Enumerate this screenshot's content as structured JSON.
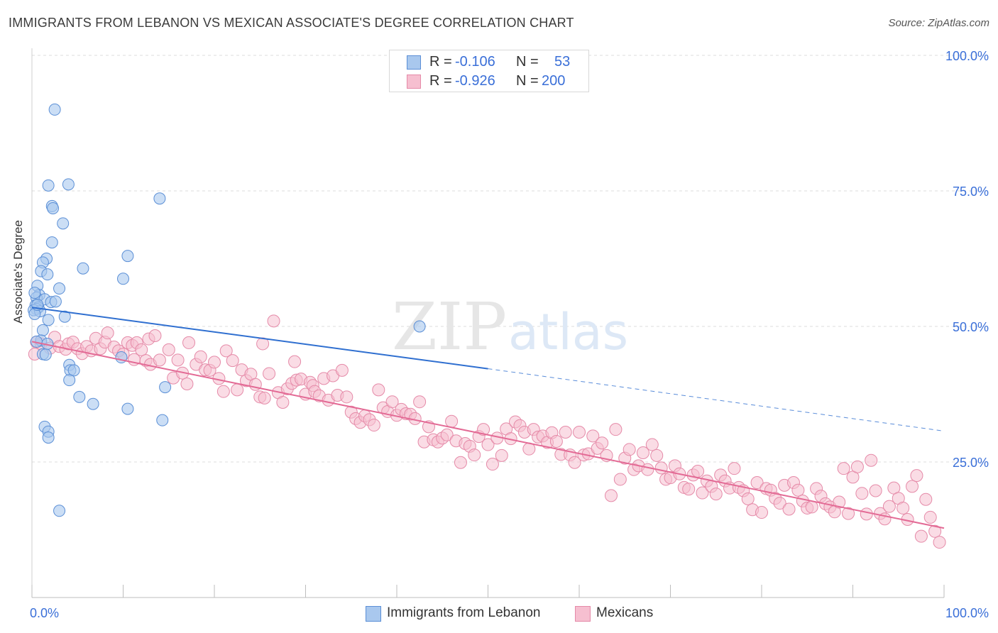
{
  "header": {
    "title": "IMMIGRANTS FROM LEBANON VS MEXICAN ASSOCIATE'S DEGREE CORRELATION CHART",
    "source": "Source: ZipAtlas.com"
  },
  "watermark": {
    "zip": "ZIP",
    "atlas": "atlas"
  },
  "legend_top": {
    "rows": [
      {
        "r_label": "R =",
        "r_value": "-0.106",
        "n_label": "N =",
        "n_value": "53"
      },
      {
        "r_label": "R =",
        "r_value": "-0.926",
        "n_label": "N =",
        "n_value": "200"
      }
    ]
  },
  "legend_bottom": {
    "items": [
      {
        "label": "Immigrants from Lebanon"
      },
      {
        "label": "Mexicans"
      }
    ]
  },
  "colors": {
    "blue_fill": "#a9c8ee",
    "blue_stroke": "#5b8fd6",
    "blue_line": "#2f6fd0",
    "pink_fill": "#f6bfd0",
    "pink_stroke": "#e58aa8",
    "pink_line": "#e36a95",
    "axis_text": "#3a6fd8"
  },
  "chart_data": {
    "type": "scatter",
    "title": "IMMIGRANTS FROM LEBANON VS MEXICAN ASSOCIATE'S DEGREE CORRELATION CHART",
    "xlabel": "",
    "ylabel": "Associate's Degree",
    "xlim": [
      0,
      100
    ],
    "ylim": [
      0,
      100
    ],
    "x_tick_labels": [
      "0.0%",
      "100.0%"
    ],
    "y_tick_labels": [
      "25.0%",
      "50.0%",
      "75.0%",
      "100.0%"
    ],
    "y_ticks": [
      25,
      50,
      75,
      100
    ],
    "series": [
      {
        "name": "Immigrants from Lebanon",
        "r": -0.106,
        "n": 53,
        "trend": {
          "x0": 0,
          "y0": 53.5,
          "x1": 50,
          "y1": 42.2,
          "dash_to_x": 100,
          "dash_to_y": 30.7
        },
        "points": [
          [
            2.5,
            90
          ],
          [
            1.8,
            76
          ],
          [
            4,
            76.2
          ],
          [
            14,
            73.6
          ],
          [
            2.2,
            72.2
          ],
          [
            2.3,
            71.8
          ],
          [
            3.4,
            69
          ],
          [
            2.2,
            65.5
          ],
          [
            10.5,
            63
          ],
          [
            1.6,
            62.5
          ],
          [
            1.2,
            61.8
          ],
          [
            5.6,
            60.7
          ],
          [
            1,
            60.2
          ],
          [
            1.7,
            59.6
          ],
          [
            10,
            58.8
          ],
          [
            0.6,
            57.5
          ],
          [
            3,
            57
          ],
          [
            0.8,
            55.8
          ],
          [
            0.5,
            55.3
          ],
          [
            1.4,
            55
          ],
          [
            2.1,
            54.5
          ],
          [
            0.4,
            53.9
          ],
          [
            0.7,
            53.5
          ],
          [
            0.5,
            53.2
          ],
          [
            0.2,
            53
          ],
          [
            0.9,
            52.8
          ],
          [
            0.3,
            52.3
          ],
          [
            3.6,
            51.8
          ],
          [
            1.8,
            51.2
          ],
          [
            1.2,
            49.3
          ],
          [
            42.5,
            50
          ],
          [
            1,
            47.4
          ],
          [
            0.5,
            47.2
          ],
          [
            1.7,
            46.8
          ],
          [
            1.2,
            44.9
          ],
          [
            1.5,
            44.8
          ],
          [
            9.8,
            44.3
          ],
          [
            4.1,
            42.9
          ],
          [
            4.2,
            41.9
          ],
          [
            4.6,
            41.9
          ],
          [
            4.1,
            40.1
          ],
          [
            14.6,
            38.8
          ],
          [
            5.2,
            37
          ],
          [
            6.7,
            35.7
          ],
          [
            10.5,
            34.8
          ],
          [
            1.4,
            31.5
          ],
          [
            1.8,
            30.6
          ],
          [
            1.8,
            29.5
          ],
          [
            14.3,
            32.7
          ],
          [
            3,
            16
          ],
          [
            0.3,
            56.2
          ],
          [
            0.6,
            54
          ],
          [
            2.6,
            54.6
          ]
        ]
      },
      {
        "name": "Mexicans",
        "r": -0.926,
        "n": 200,
        "trend": {
          "x0": 0,
          "y0": 47.2,
          "x1": 100,
          "y1": 12.8
        },
        "points": [
          [
            0.3,
            44.9
          ],
          [
            0.5,
            47.1
          ],
          [
            1,
            46.8
          ],
          [
            2,
            46
          ],
          [
            2.5,
            48
          ],
          [
            3,
            46.3
          ],
          [
            3.7,
            45.8
          ],
          [
            4,
            46.8
          ],
          [
            4.5,
            47.1
          ],
          [
            5,
            45.9
          ],
          [
            5.5,
            45
          ],
          [
            6,
            46.3
          ],
          [
            6.5,
            45.5
          ],
          [
            7,
            47.8
          ],
          [
            7.5,
            45.9
          ],
          [
            8,
            47.1
          ],
          [
            8.3,
            48.8
          ],
          [
            9,
            46.2
          ],
          [
            9.5,
            45.5
          ],
          [
            10,
            44.9
          ],
          [
            10.5,
            47
          ],
          [
            11,
            46.5
          ],
          [
            11.2,
            43.9
          ],
          [
            11.5,
            47
          ],
          [
            12,
            45.7
          ],
          [
            12.5,
            43.7
          ],
          [
            12.8,
            47.7
          ],
          [
            13,
            43
          ],
          [
            13.5,
            48.3
          ],
          [
            14,
            43.8
          ],
          [
            15,
            45.7
          ],
          [
            15.5,
            40.5
          ],
          [
            16,
            43.8
          ],
          [
            16.5,
            41.4
          ],
          [
            17,
            39.4
          ],
          [
            17.2,
            47
          ],
          [
            18,
            43
          ],
          [
            18.5,
            44.4
          ],
          [
            19,
            42
          ],
          [
            19.5,
            41.9
          ],
          [
            20,
            43.4
          ],
          [
            20.5,
            40.4
          ],
          [
            21,
            38
          ],
          [
            21.3,
            45.5
          ],
          [
            22,
            43.7
          ],
          [
            22.5,
            38.3
          ],
          [
            23,
            42
          ],
          [
            23.5,
            40
          ],
          [
            24,
            41.2
          ],
          [
            24.5,
            39.3
          ],
          [
            25,
            37
          ],
          [
            25.3,
            46.8
          ],
          [
            25.5,
            36.8
          ],
          [
            26,
            41.3
          ],
          [
            26.5,
            51
          ],
          [
            27,
            37.8
          ],
          [
            27.5,
            36
          ],
          [
            28,
            38.5
          ],
          [
            28.5,
            39.5
          ],
          [
            28.8,
            43.5
          ],
          [
            29,
            40.1
          ],
          [
            29.5,
            40.3
          ],
          [
            30,
            37.5
          ],
          [
            30.5,
            39.7
          ],
          [
            30.8,
            39.1
          ],
          [
            31,
            38
          ],
          [
            31.5,
            37.2
          ],
          [
            32,
            40.4
          ],
          [
            32.5,
            36.4
          ],
          [
            33,
            40.9
          ],
          [
            33.5,
            37.3
          ],
          [
            34,
            41.9
          ],
          [
            34.5,
            37
          ],
          [
            35,
            34.2
          ],
          [
            35.5,
            33
          ],
          [
            36,
            32.3
          ],
          [
            36.5,
            33.5
          ],
          [
            37,
            32.8
          ],
          [
            37.5,
            31.8
          ],
          [
            38,
            38.3
          ],
          [
            38.5,
            35
          ],
          [
            39,
            34.3
          ],
          [
            39.5,
            36.1
          ],
          [
            40,
            33.6
          ],
          [
            40.5,
            34.7
          ],
          [
            41,
            33.9
          ],
          [
            41.5,
            33.8
          ],
          [
            42,
            33
          ],
          [
            42.5,
            36.1
          ],
          [
            43,
            28.7
          ],
          [
            43.5,
            31.5
          ],
          [
            44,
            29.1
          ],
          [
            44.5,
            28.7
          ],
          [
            45,
            29.4
          ],
          [
            45.5,
            30
          ],
          [
            46,
            32.5
          ],
          [
            46.5,
            28.9
          ],
          [
            47,
            24.9
          ],
          [
            47.5,
            28.4
          ],
          [
            48,
            27.9
          ],
          [
            48.5,
            26.3
          ],
          [
            49,
            29.7
          ],
          [
            49.5,
            31
          ],
          [
            50,
            28.2
          ],
          [
            50.5,
            24.6
          ],
          [
            51,
            29.4
          ],
          [
            51.5,
            26.2
          ],
          [
            52,
            31.1
          ],
          [
            52.5,
            29.3
          ],
          [
            53,
            32.4
          ],
          [
            53.5,
            31.7
          ],
          [
            54,
            30.5
          ],
          [
            54.5,
            27.4
          ],
          [
            55,
            31
          ],
          [
            55.5,
            29.6
          ],
          [
            56,
            29.8
          ],
          [
            56.5,
            28.6
          ],
          [
            57,
            30.4
          ],
          [
            57.5,
            28.8
          ],
          [
            58,
            26.4
          ],
          [
            58.5,
            30.5
          ],
          [
            59,
            26.3
          ],
          [
            59.5,
            24.9
          ],
          [
            60,
            30.5
          ],
          [
            60.5,
            26.3
          ],
          [
            61,
            26.5
          ],
          [
            61.5,
            29.8
          ],
          [
            62,
            27.5
          ],
          [
            62.5,
            28.5
          ],
          [
            63,
            26.2
          ],
          [
            63.5,
            18.8
          ],
          [
            64,
            31
          ],
          [
            64.5,
            21.8
          ],
          [
            65,
            25.7
          ],
          [
            65.5,
            27.3
          ],
          [
            66,
            23.6
          ],
          [
            66.5,
            24.3
          ],
          [
            67,
            26.7
          ],
          [
            67.5,
            23.6
          ],
          [
            68,
            28.2
          ],
          [
            68.5,
            26.2
          ],
          [
            69,
            23.9
          ],
          [
            69.5,
            21.8
          ],
          [
            70,
            22.1
          ],
          [
            70.5,
            24.3
          ],
          [
            71,
            22.8
          ],
          [
            71.5,
            20.3
          ],
          [
            72,
            20
          ],
          [
            72.5,
            22.6
          ],
          [
            73,
            23.3
          ],
          [
            73.5,
            19.3
          ],
          [
            74,
            21.5
          ],
          [
            74.5,
            20.5
          ],
          [
            75,
            19.1
          ],
          [
            75.5,
            22.6
          ],
          [
            76,
            21.5
          ],
          [
            76.5,
            20.2
          ],
          [
            77,
            23.8
          ],
          [
            77.5,
            20.3
          ],
          [
            78,
            19.7
          ],
          [
            78.5,
            18.2
          ],
          [
            79,
            16.2
          ],
          [
            79.5,
            21.2
          ],
          [
            80,
            15.7
          ],
          [
            80.5,
            20.1
          ],
          [
            81,
            19.8
          ],
          [
            81.5,
            18.3
          ],
          [
            82,
            17.4
          ],
          [
            82.5,
            20.7
          ],
          [
            83,
            16.3
          ],
          [
            83.5,
            21.2
          ],
          [
            84,
            19.8
          ],
          [
            84.5,
            17.8
          ],
          [
            85,
            16.5
          ],
          [
            85.5,
            16.7
          ],
          [
            86,
            20.1
          ],
          [
            86.5,
            18.7
          ],
          [
            87,
            17.3
          ],
          [
            87.5,
            16.7
          ],
          [
            88,
            15.8
          ],
          [
            88.5,
            17.6
          ],
          [
            89,
            23.8
          ],
          [
            89.5,
            15.5
          ],
          [
            90,
            22.2
          ],
          [
            90.5,
            24.1
          ],
          [
            91,
            19.2
          ],
          [
            91.5,
            15.4
          ],
          [
            92,
            25.3
          ],
          [
            92.5,
            19.7
          ],
          [
            93,
            15.5
          ],
          [
            93.5,
            14.5
          ],
          [
            94,
            16.8
          ],
          [
            94.5,
            20.2
          ],
          [
            95,
            18.3
          ],
          [
            95.5,
            16.5
          ],
          [
            96,
            14.4
          ],
          [
            96.5,
            20.5
          ],
          [
            97,
            22.5
          ],
          [
            97.5,
            11.3
          ],
          [
            98,
            18.1
          ],
          [
            98.5,
            14.8
          ],
          [
            99,
            12.2
          ],
          [
            99.5,
            10.2
          ]
        ]
      }
    ]
  }
}
